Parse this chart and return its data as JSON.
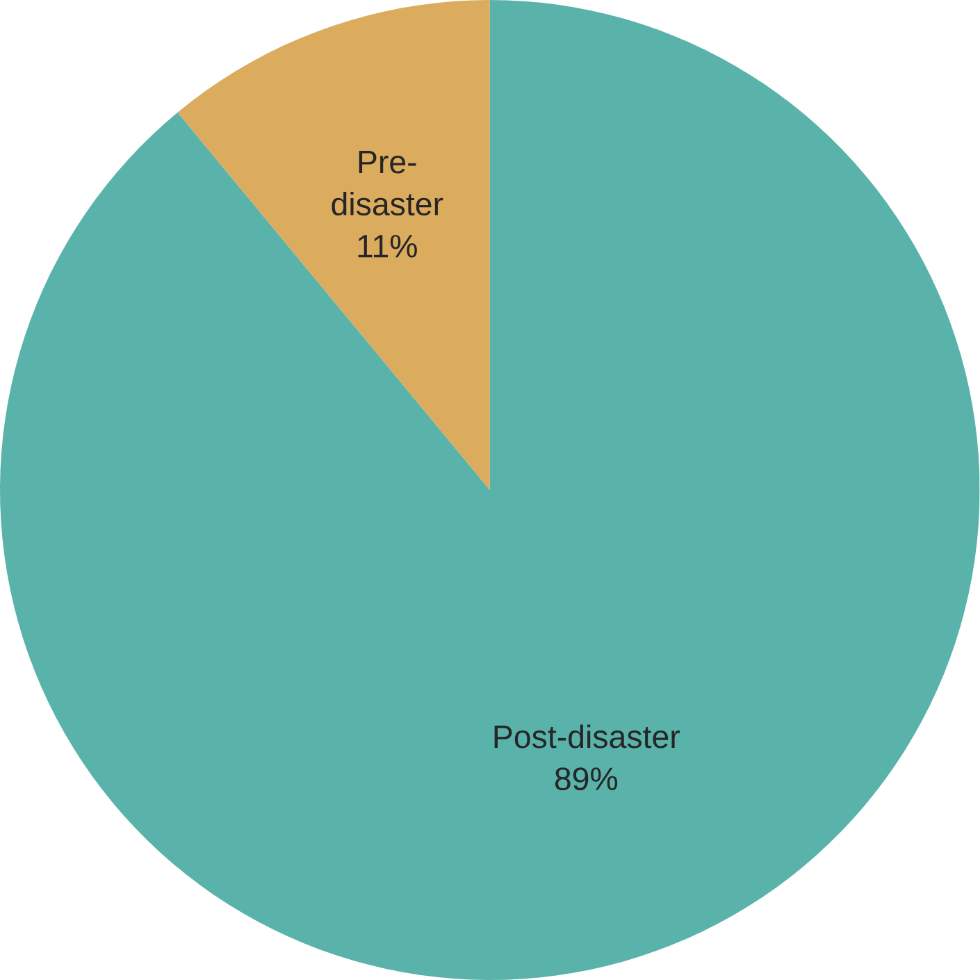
{
  "chart_data": {
    "type": "pie",
    "categories": [
      "Post-disaster",
      "Pre-disaster"
    ],
    "values": [
      89,
      11
    ],
    "colors": [
      "#5ab3aa",
      "#dbab5e"
    ],
    "value_labels": [
      "89%",
      "11%"
    ]
  }
}
